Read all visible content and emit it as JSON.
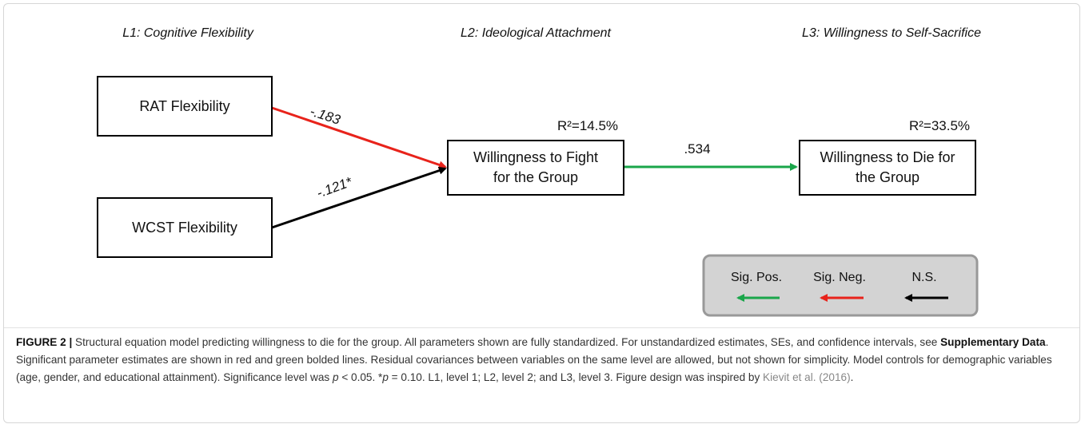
{
  "levels": [
    "L1: Cognitive Flexibility",
    "L2: Ideological Attachment",
    "L3: Willingness to Self-Sacrifice"
  ],
  "nodes": [
    {
      "lines": [
        "RAT Flexibility"
      ]
    },
    {
      "lines": [
        "WCST Flexibility"
      ]
    },
    {
      "lines": [
        "Willingness to Fight",
        "for the Group"
      ],
      "r2": "R²=14.5%"
    },
    {
      "lines": [
        "Willingness to Die for",
        "the Group"
      ],
      "r2": "R²=33.5%"
    }
  ],
  "edges": [
    {
      "label": "-.183"
    },
    {
      "label": "-.121*"
    },
    {
      "label": ".534"
    }
  ],
  "legend": [
    "Sig. Pos.",
    "Sig. Neg.",
    "N.S."
  ],
  "caption": [
    "FIGURE 2 |",
    " Structural equation model predicting willingness to die for the group. All parameters shown are fully standardized. For unstandardized estimates, SEs, and confidence intervals, see ",
    "Supplementary Data",
    ". Significant parameter estimates are shown in red and green bolded lines. Residual covariances between variables on the same level are allowed, but not shown for simplicity. Model controls for demographic variables (age, gender, and educational attainment). Significance level was ",
    "p",
    " < 0.05. *",
    "p",
    " = 0.10. L1, level 1; L2, level 2; and L3, level 3. Figure design was inspired by ",
    "Kievit et al. (2016)",
    "."
  ]
}
